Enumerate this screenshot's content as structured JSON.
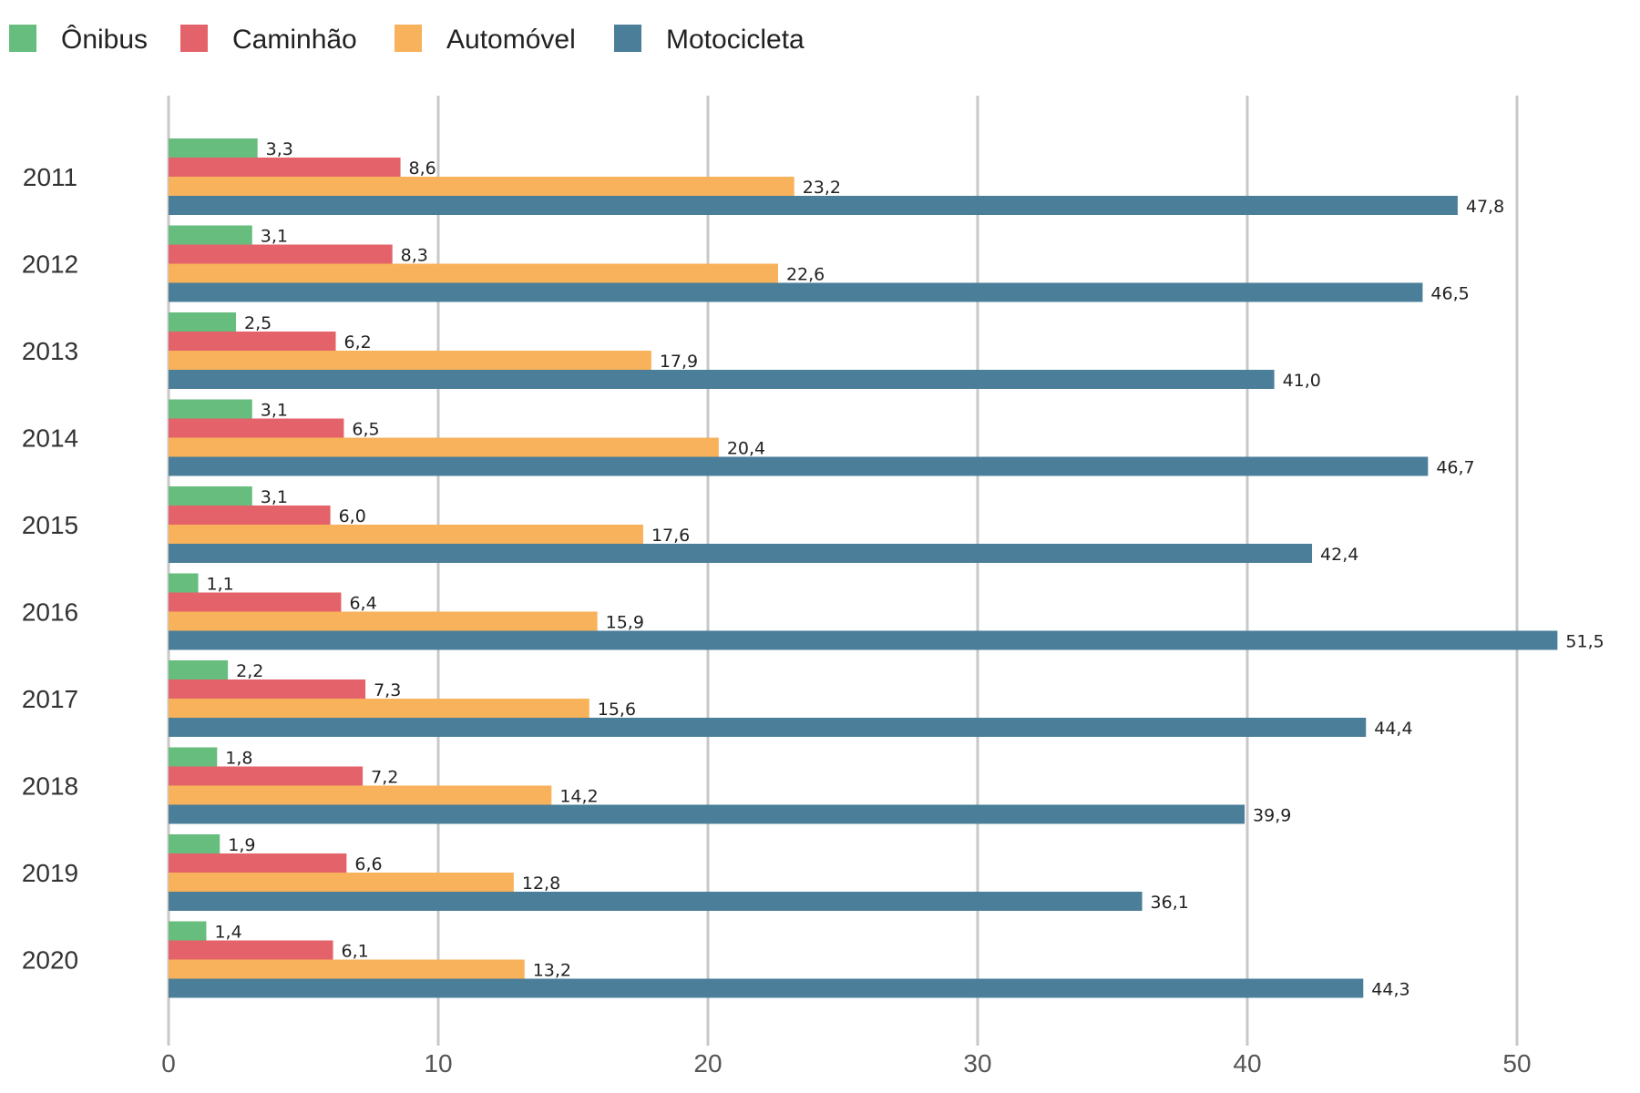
{
  "chart_data": {
    "type": "bar",
    "orientation": "horizontal",
    "categories": [
      "2011",
      "2012",
      "2013",
      "2014",
      "2015",
      "2016",
      "2017",
      "2018",
      "2019",
      "2020"
    ],
    "series": [
      {
        "name": "Ônibus",
        "color": "#66bd7e",
        "values": [
          3.3,
          3.1,
          2.5,
          3.1,
          3.1,
          1.1,
          2.2,
          1.8,
          1.9,
          1.4
        ],
        "labels": [
          "3,3",
          "3,1",
          "2,5",
          "3,1",
          "3,1",
          "1,1",
          "2,2",
          "1,8",
          "1,9",
          "1,4"
        ]
      },
      {
        "name": "Caminhão",
        "color": "#e4636b",
        "values": [
          8.6,
          8.3,
          6.2,
          6.5,
          6.0,
          6.4,
          7.3,
          7.2,
          6.6,
          6.1
        ],
        "labels": [
          "8,6",
          "8,3",
          "6,2",
          "6,5",
          "6,0",
          "6,4",
          "7,3",
          "7,2",
          "6,6",
          "6,1"
        ]
      },
      {
        "name": "Automóvel",
        "color": "#f8b25b",
        "values": [
          23.2,
          22.6,
          17.9,
          20.4,
          17.6,
          15.9,
          15.6,
          14.2,
          12.8,
          13.2
        ],
        "labels": [
          "23,2",
          "22,6",
          "17,9",
          "20,4",
          "17,6",
          "15,9",
          "15,6",
          "14,2",
          "12,8",
          "13,2"
        ]
      },
      {
        "name": "Motocicleta",
        "color": "#4a7e99",
        "values": [
          47.8,
          46.5,
          41.0,
          46.7,
          42.4,
          51.5,
          44.4,
          39.9,
          36.1,
          44.3
        ],
        "labels": [
          "47,8",
          "46,5",
          "41,0",
          "46,7",
          "42,4",
          "51,5",
          "44,4",
          "39,9",
          "36,1",
          "44,3"
        ]
      }
    ],
    "xlim": [
      0,
      52
    ],
    "xticks": [
      0,
      10,
      20,
      30,
      40,
      50
    ],
    "xtick_labels": [
      "0",
      "10",
      "20",
      "30",
      "40",
      "50"
    ],
    "grid": "vertical",
    "legend_position": "top-left"
  }
}
